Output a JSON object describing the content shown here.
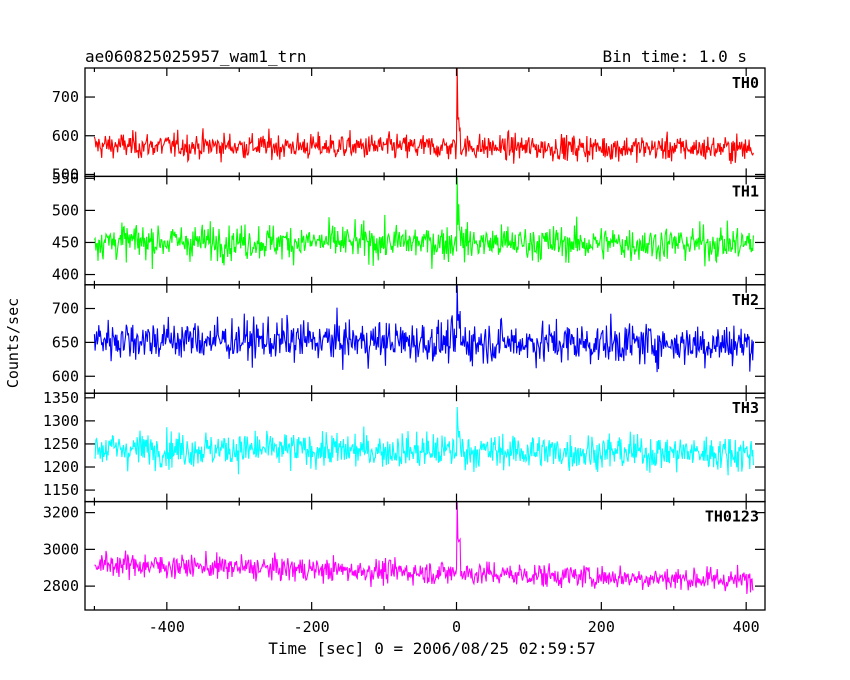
{
  "chart_data": {
    "type": "line",
    "title_left": "ae060825025957_wam1_trn",
    "title_right": "Bin time: 1.0 s",
    "xlabel": "Time [sec] 0 = 2006/08/25 02:59:57",
    "ylabel": "Counts/sec",
    "xlim": [
      -513,
      426
    ],
    "xticks": [
      -400,
      -200,
      0,
      200,
      400
    ],
    "grid": false,
    "panels": [
      {
        "name": "TH0",
        "color": "#ff0000",
        "ylim": [
          495,
          775
        ],
        "yticks": [
          500,
          600,
          700
        ],
        "mean": 575,
        "noise": 28,
        "trend": -8,
        "spike": 775,
        "spike_x": 1
      },
      {
        "name": "TH1",
        "color": "#00ff00",
        "ylim": [
          384,
          553
        ],
        "yticks": [
          400,
          450,
          500,
          550
        ],
        "mean": 452,
        "noise": 23,
        "trend": -4,
        "spike": 553,
        "spike_x": 1
      },
      {
        "name": "TH2",
        "color": "#0000ff",
        "ylim": [
          575,
          735
        ],
        "yticks": [
          600,
          650,
          700
        ],
        "mean": 655,
        "noise": 26,
        "trend": -8,
        "spike": 735,
        "spike_x": 1
      },
      {
        "name": "TH3",
        "color": "#00ffff",
        "ylim": [
          1125,
          1360
        ],
        "yticks": [
          1150,
          1200,
          1250,
          1300,
          1350
        ],
        "mean": 1240,
        "noise": 32,
        "trend": -10,
        "spike": 1330,
        "spike_x": 1
      },
      {
        "name": "TH0123",
        "color": "#ff00ff",
        "ylim": [
          2670,
          3260
        ],
        "yticks": [
          2800,
          3000,
          3200
        ],
        "mean": 2920,
        "noise": 55,
        "trend": -90,
        "spike": 3260,
        "spike_x": 1
      }
    ]
  }
}
